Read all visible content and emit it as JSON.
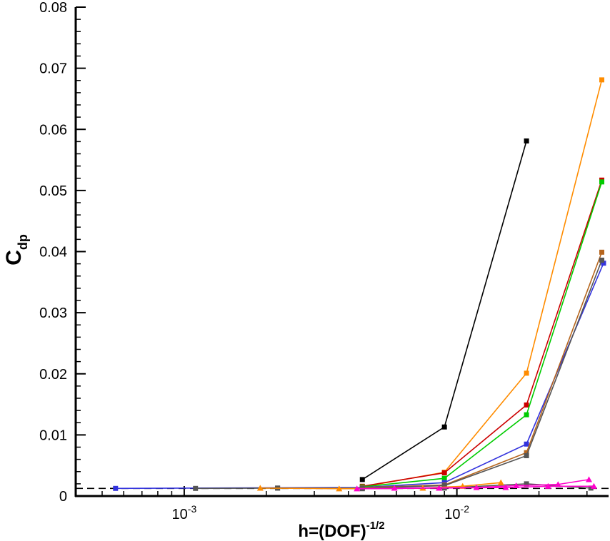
{
  "chart_data": {
    "type": "line",
    "xscale": "log",
    "xlim": [
      0.0004,
      0.036
    ],
    "ylim": [
      0,
      0.08
    ],
    "xlabel": {
      "main": "h=(DOF)",
      "sup": "-1/2"
    },
    "ylabel": {
      "main": "C",
      "sub": "dp"
    },
    "yticks": [
      "0",
      "0.01",
      "0.02",
      "0.03",
      "0.04",
      "0.05",
      "0.06",
      "0.07",
      "0.08"
    ],
    "xticks": [
      {
        "base": "10",
        "exp": "-3",
        "value": 0.001
      },
      {
        "base": "10",
        "exp": "-2",
        "value": 0.01
      }
    ],
    "grid": false,
    "reference_line": {
      "y": 0.00125,
      "style": "dashed",
      "color": "#000000"
    },
    "series": [
      {
        "color": "#000000",
        "marker": "square",
        "x": [
          0.0045,
          0.009,
          0.018
        ],
        "y": [
          0.0027,
          0.0113,
          0.0581
        ]
      },
      {
        "color": "#ff8c00",
        "marker": "square",
        "x": [
          0.0045,
          0.009,
          0.018,
          0.034
        ],
        "y": [
          0.0015,
          0.0039,
          0.0201,
          0.0681
        ]
      },
      {
        "color": "#cc0000",
        "marker": "square",
        "x": [
          0.0045,
          0.009,
          0.018,
          0.034
        ],
        "y": [
          0.0016,
          0.0038,
          0.0149,
          0.0517
        ]
      },
      {
        "color": "#00cc00",
        "marker": "square",
        "x": [
          0.0045,
          0.009,
          0.018,
          0.034
        ],
        "y": [
          0.0015,
          0.0029,
          0.0133,
          0.0514
        ]
      },
      {
        "color": "#3333dd",
        "marker": "square",
        "x": [
          0.00056,
          0.0045,
          0.009,
          0.018,
          0.0345
        ],
        "y": [
          0.00125,
          0.0014,
          0.0022,
          0.0085,
          0.0381
        ]
      },
      {
        "color": "#b5651d",
        "marker": "square",
        "x": [
          0.0045,
          0.009,
          0.018,
          0.034
        ],
        "y": [
          0.0014,
          0.0018,
          0.0071,
          0.0399
        ]
      },
      {
        "color": "#555555",
        "marker": "square",
        "x": [
          0.0011,
          0.0022,
          0.0045,
          0.009,
          0.018,
          0.034
        ],
        "y": [
          0.00125,
          0.0013,
          0.0013,
          0.0017,
          0.0066,
          0.0386
        ]
      },
      {
        "color": "#555555",
        "marker": "square",
        "x": [
          0.0022,
          0.0045,
          0.009,
          0.018,
          0.031
        ],
        "y": [
          0.0013,
          0.0012,
          0.0013,
          0.002,
          0.0013
        ]
      },
      {
        "color": "#ff8c00",
        "marker": "triangle",
        "x": [
          0.0019,
          0.0037,
          0.0075,
          0.0105,
          0.0145
        ],
        "y": [
          0.0013,
          0.0012,
          0.0013,
          0.0016,
          0.0022
        ]
      },
      {
        "color": "#ff00cc",
        "marker": "triangle",
        "x": [
          0.0059,
          0.0118,
          0.0165,
          0.0235,
          0.0305
        ],
        "y": [
          0.0013,
          0.0014,
          0.0017,
          0.0019,
          0.0027
        ]
      },
      {
        "color": "#ff00cc",
        "marker": "triangle",
        "x": [
          0.0043,
          0.0086,
          0.0151,
          0.0216,
          0.0318
        ],
        "y": [
          0.0012,
          0.0013,
          0.0014,
          0.0016,
          0.0016
        ]
      }
    ]
  }
}
